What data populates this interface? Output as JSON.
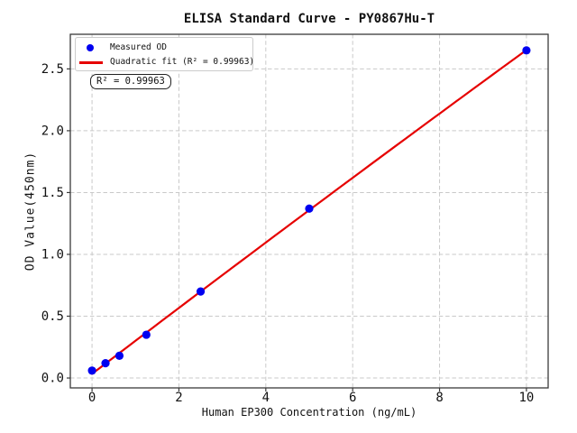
{
  "figure": {
    "title": "ELISA Standard Curve - PY0867Hu-T",
    "xlabel": "Human EP300 Concentration (ng/mL)",
    "ylabel": "OD Value(450nm)",
    "annotation_text": "R² = 0.99963",
    "legend": {
      "position": "upper left",
      "items": [
        {
          "label": "Measured OD",
          "marker": "dot",
          "color": "#0000f0"
        },
        {
          "label": "Quadratic fit (R² = 0.99963)",
          "marker": "line",
          "color": "#e60000"
        }
      ]
    },
    "colors": {
      "marker": "#0000f0",
      "fit_line": "#e60000",
      "grid": "#c9c9c9",
      "spine": "#3a3a3a",
      "text": "#111111",
      "background": "#ffffff"
    }
  },
  "chart_data": {
    "type": "scatter",
    "title": "ELISA Standard Curve - PY0867Hu-T",
    "xlabel": "Human EP300 Concentration (ng/mL)",
    "ylabel": "OD Value(450nm)",
    "series_name": "Measured OD",
    "x": [
      0,
      0.31,
      0.63,
      1.25,
      2.5,
      5,
      10
    ],
    "y": [
      0.06,
      0.12,
      0.18,
      0.35,
      0.7,
      1.37,
      2.65
    ],
    "fit": {
      "type": "quadratic",
      "label": "Quadratic fit (R² = 0.99963)",
      "r_squared": 0.99963,
      "x_range": [
        0,
        10
      ],
      "color": "#e60000"
    },
    "marker_color": "#0000f0",
    "xlim": [
      -0.5,
      10.5
    ],
    "ylim": [
      -0.08,
      2.78
    ],
    "xticks": [
      0,
      2,
      4,
      6,
      8,
      10
    ],
    "yticks": [
      0,
      0.5,
      1,
      1.5,
      2,
      2.5
    ],
    "grid": true,
    "grid_style": "dashed",
    "legend_position": "upper left"
  }
}
